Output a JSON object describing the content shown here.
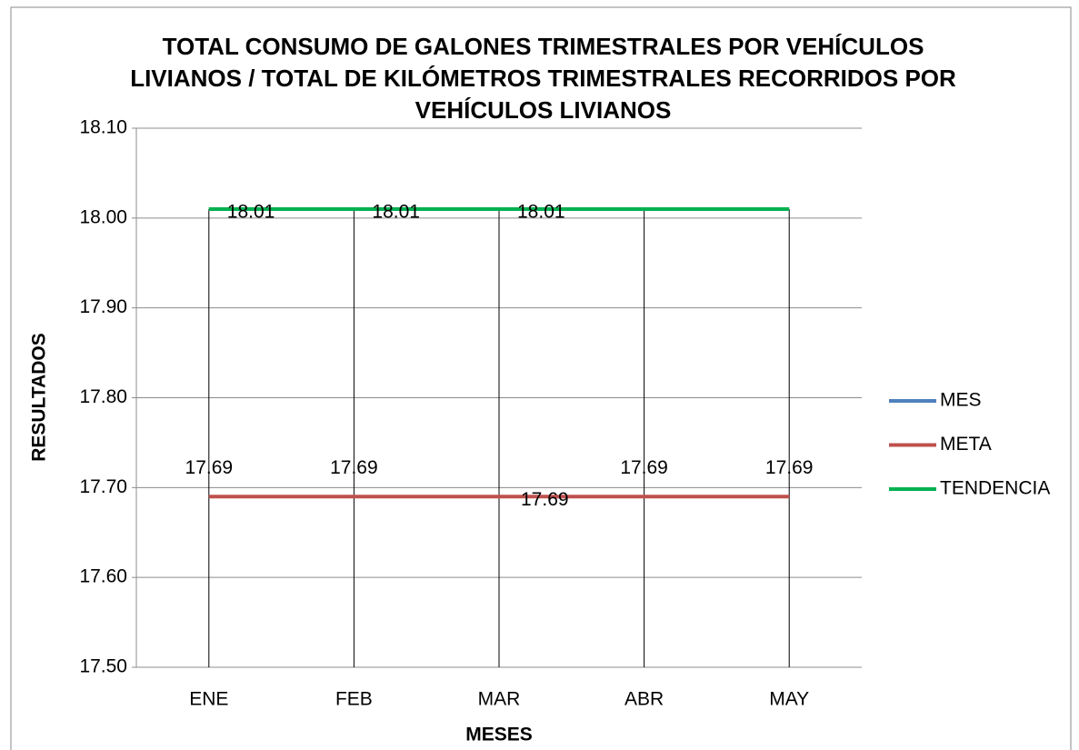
{
  "chart_data": {
    "type": "line",
    "title": "TOTAL CONSUMO DE GALONES TRIMESTRALES POR VEHÍCULOS\nLIVIANOS / TOTAL DE KILÓMETROS TRIMESTRALES RECORRIDOS POR\nVEHÍCULOS LIVIANOS",
    "x_label": "MESES",
    "y_label": "RESULTADOS",
    "categories": [
      "ENE",
      "FEB",
      "MAR",
      "ABR",
      "MAY"
    ],
    "series": [
      {
        "name": "MES",
        "color": "#4f81bd",
        "values": [
          18.01,
          18.01,
          18.01,
          null,
          null
        ],
        "value_labels": [
          "18.01",
          "18.01",
          "18.01",
          null,
          null
        ]
      },
      {
        "name": "META",
        "color": "#c0504d",
        "values": [
          17.69,
          17.69,
          17.69,
          17.69,
          17.69
        ],
        "value_labels": [
          "17.69",
          "17.69",
          "17.69",
          "17.69",
          "17.69"
        ]
      },
      {
        "name": "TENDENCIA",
        "color": "#00b050",
        "values": [
          18.01,
          18.01,
          18.01,
          18.01,
          18.01
        ]
      }
    ],
    "ylim": [
      17.5,
      18.1
    ],
    "yticks": [
      {
        "value": 17.5,
        "label": "17.50"
      },
      {
        "value": 17.6,
        "label": "17.60"
      },
      {
        "value": 17.7,
        "label": "17.70"
      },
      {
        "value": 17.8,
        "label": "17.80"
      },
      {
        "value": 17.9,
        "label": "17.90"
      },
      {
        "value": 18.0,
        "label": "18.00"
      },
      {
        "value": 18.1,
        "label": "18.10"
      }
    ],
    "grid": true,
    "drop_lines": true,
    "legend": "right"
  }
}
